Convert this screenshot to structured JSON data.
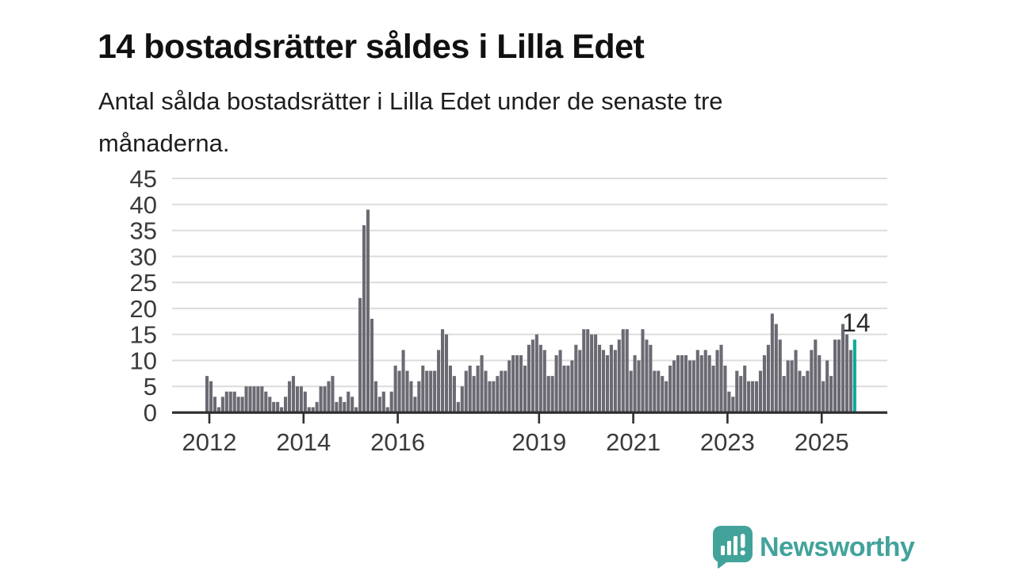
{
  "header": {
    "title": "14 bostadsrätter såldes i Lilla Edet",
    "subtitle_lines": [
      "Antal sålda bostadsrätter i Lilla Edet under de senaste tre",
      "månaderna."
    ]
  },
  "chart_data": {
    "type": "bar",
    "title": "14 bostadsrätter såldes i Lilla Edet",
    "subtitle": "Antal sålda bostadsrätter i Lilla Edet under de senaste tre månaderna.",
    "frequency": "monthly",
    "x_start": "2012-01",
    "x_end": "2025-10",
    "values": [
      7,
      6,
      3,
      1,
      3,
      4,
      4,
      4,
      3,
      3,
      5,
      5,
      5,
      5,
      5,
      4,
      3,
      2,
      2,
      1,
      3,
      6,
      7,
      5,
      5,
      4,
      1,
      1,
      2,
      5,
      5,
      6,
      7,
      2,
      3,
      2,
      4,
      3,
      1,
      22,
      36,
      39,
      18,
      6,
      3,
      4,
      1,
      4,
      9,
      8,
      12,
      8,
      6,
      3,
      6,
      9,
      8,
      8,
      8,
      12,
      16,
      15,
      9,
      7,
      2,
      5,
      8,
      9,
      7,
      9,
      11,
      8,
      6,
      6,
      7,
      8,
      8,
      10,
      11,
      11,
      11,
      9,
      13,
      14,
      15,
      13,
      12,
      7,
      7,
      11,
      12,
      9,
      9,
      10,
      13,
      12,
      16,
      16,
      15,
      15,
      13,
      12,
      11,
      13,
      12,
      14,
      16,
      16,
      8,
      11,
      10,
      16,
      14,
      13,
      8,
      8,
      7,
      6,
      9,
      10,
      11,
      11,
      11,
      10,
      10,
      12,
      11,
      12,
      11,
      9,
      12,
      13,
      9,
      4,
      3,
      8,
      7,
      9,
      6,
      6,
      6,
      8,
      11,
      13,
      19,
      17,
      14,
      7,
      10,
      10,
      12,
      8,
      7,
      8,
      12,
      14,
      11,
      6,
      10,
      7,
      14,
      14,
      17,
      15,
      12,
      14
    ],
    "highlight_last_value": 14,
    "annotation": "14",
    "yticks": [
      0,
      5,
      10,
      15,
      20,
      25,
      30,
      35,
      40,
      45
    ],
    "ylim": [
      0,
      45
    ],
    "xticks": [
      {
        "label": "2012",
        "year": 2012
      },
      {
        "label": "2014",
        "year": 2014
      },
      {
        "label": "2016",
        "year": 2016
      },
      {
        "label": "2019",
        "year": 2019
      },
      {
        "label": "2021",
        "year": 2021
      },
      {
        "label": "2023",
        "year": 2023
      },
      {
        "label": "2025",
        "year": 2025
      }
    ],
    "grid": "horizontal",
    "legend": "none",
    "bar_color": "#6b6a73",
    "highlight_color": "#0ea79a",
    "grid_color": "#dcdcdc",
    "axis_color": "#2e2e2e",
    "axis_text_color": "#3a3a3a",
    "annotation_color": "#2b2b2b"
  },
  "footer": {
    "brand": "Newsworthy",
    "brand_color": "#42a39b",
    "logo_icon": "bar-chart-speech-bubble"
  }
}
